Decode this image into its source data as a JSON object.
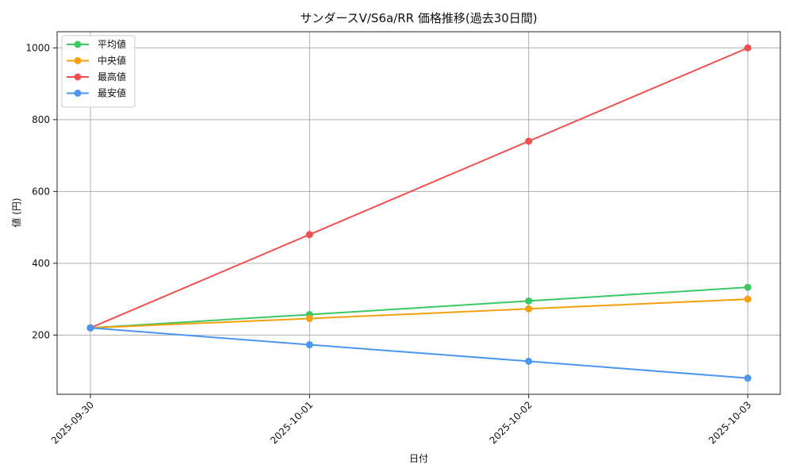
{
  "chart_data": {
    "type": "line",
    "title": "サンダースV/S6a/RR 価格推移(過去30日間)",
    "xlabel": "日付",
    "ylabel": "値 (円)",
    "x": [
      "2025-09-30",
      "2025-10-01",
      "2025-10-02",
      "2025-10-03"
    ],
    "ylim": [
      35,
      1045
    ],
    "yticks": [
      200,
      400,
      600,
      800,
      1000
    ],
    "grid": true,
    "legend_position": "top-left",
    "series": [
      {
        "name": "平均値",
        "color": "#3cc864",
        "values": [
          220,
          257,
          295,
          333
        ]
      },
      {
        "name": "中央値",
        "color": "#f5a00f",
        "values": [
          220,
          246,
          273,
          300
        ]
      },
      {
        "name": "最高値",
        "color": "#f05050",
        "values": [
          220,
          480,
          740,
          1000
        ]
      },
      {
        "name": "最安値",
        "color": "#4b96f0",
        "values": [
          220,
          173,
          127,
          80
        ]
      }
    ]
  }
}
